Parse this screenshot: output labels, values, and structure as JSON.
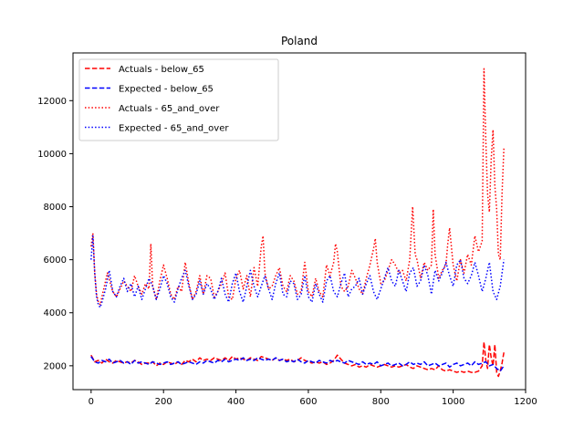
{
  "chart_data": {
    "type": "line",
    "title": "Poland",
    "xlabel": "",
    "ylabel": "",
    "xlim": [
      -50,
      1200
    ],
    "ylim": [
      1100,
      13800
    ],
    "xticks": [
      0,
      200,
      400,
      600,
      800,
      1000,
      1200
    ],
    "yticks": [
      2000,
      4000,
      6000,
      8000,
      10000,
      12000
    ],
    "grid": false,
    "legend_position": "top-left",
    "series": [
      {
        "name": "Actuals - below_65",
        "color": "#ff0000",
        "dash": "dashed",
        "x": [
          0,
          10,
          20,
          30,
          40,
          50,
          60,
          70,
          80,
          90,
          100,
          110,
          120,
          130,
          140,
          150,
          160,
          170,
          180,
          190,
          200,
          210,
          220,
          230,
          240,
          250,
          260,
          270,
          280,
          290,
          300,
          310,
          320,
          330,
          340,
          350,
          360,
          370,
          380,
          390,
          400,
          410,
          420,
          430,
          440,
          450,
          460,
          470,
          480,
          490,
          500,
          510,
          520,
          530,
          540,
          550,
          560,
          570,
          580,
          590,
          600,
          610,
          620,
          630,
          640,
          650,
          660,
          670,
          680,
          690,
          700,
          710,
          720,
          730,
          740,
          750,
          760,
          770,
          780,
          790,
          800,
          810,
          820,
          830,
          840,
          850,
          860,
          870,
          880,
          890,
          900,
          910,
          920,
          930,
          940,
          950,
          960,
          970,
          980,
          990,
          1000,
          1010,
          1020,
          1030,
          1040,
          1050,
          1060,
          1070,
          1080,
          1085,
          1090,
          1095,
          1100,
          1105,
          1110,
          1115,
          1120,
          1125,
          1130,
          1135,
          1140
        ],
        "y": [
          2400,
          2150,
          2200,
          2100,
          2250,
          2150,
          2100,
          2200,
          2150,
          2100,
          2150,
          2100,
          2200,
          2150,
          2050,
          2100,
          2100,
          2150,
          2000,
          2100,
          2050,
          2150,
          2100,
          2050,
          2150,
          2050,
          2200,
          2150,
          2250,
          2150,
          2300,
          2200,
          2250,
          2200,
          2300,
          2250,
          2200,
          2300,
          2200,
          2350,
          2250,
          2300,
          2250,
          2200,
          2300,
          2250,
          2200,
          2350,
          2300,
          2250,
          2200,
          2300,
          2200,
          2250,
          2200,
          2250,
          2150,
          2200,
          2300,
          2200,
          2150,
          2100,
          2150,
          2100,
          2150,
          2050,
          2100,
          2200,
          2400,
          2250,
          2100,
          2050,
          2000,
          2050,
          1950,
          2000,
          1950,
          2050,
          2000,
          1950,
          2000,
          2050,
          2000,
          1950,
          2000,
          1950,
          2000,
          2050,
          1950,
          1900,
          2000,
          1950,
          1900,
          1850,
          1900,
          1850,
          2000,
          1850,
          1800,
          1850,
          1800,
          1750,
          1800,
          1750,
          1800,
          1750,
          1750,
          1800,
          2000,
          2900,
          2200,
          1900,
          2800,
          2300,
          2000,
          2800,
          1750,
          1600,
          1800,
          2100,
          2500
        ]
      },
      {
        "name": "Expected - below_65",
        "color": "#0000ff",
        "dash": "dashed",
        "x": [
          0,
          10,
          20,
          30,
          40,
          50,
          60,
          70,
          80,
          90,
          100,
          110,
          120,
          130,
          140,
          150,
          160,
          170,
          180,
          190,
          200,
          210,
          220,
          230,
          240,
          250,
          260,
          270,
          280,
          290,
          300,
          310,
          320,
          330,
          340,
          350,
          360,
          370,
          380,
          390,
          400,
          410,
          420,
          430,
          440,
          450,
          460,
          470,
          480,
          490,
          500,
          510,
          520,
          530,
          540,
          550,
          560,
          570,
          580,
          590,
          600,
          610,
          620,
          630,
          640,
          650,
          660,
          670,
          680,
          690,
          700,
          710,
          720,
          730,
          740,
          750,
          760,
          770,
          780,
          790,
          800,
          810,
          820,
          830,
          840,
          850,
          860,
          870,
          880,
          890,
          900,
          910,
          920,
          930,
          940,
          950,
          960,
          970,
          980,
          990,
          1000,
          1010,
          1020,
          1030,
          1040,
          1050,
          1060,
          1070,
          1080,
          1090,
          1100,
          1110,
          1120,
          1130,
          1140
        ],
        "y": [
          2350,
          2150,
          2100,
          2200,
          2150,
          2250,
          2100,
          2150,
          2200,
          2100,
          2150,
          2050,
          2200,
          2100,
          2150,
          2100,
          2050,
          2150,
          2100,
          2050,
          2100,
          2150,
          2050,
          2100,
          2150,
          2050,
          2100,
          2150,
          2100,
          2050,
          2150,
          2100,
          2200,
          2150,
          2100,
          2200,
          2150,
          2250,
          2150,
          2200,
          2250,
          2200,
          2300,
          2200,
          2250,
          2200,
          2300,
          2250,
          2200,
          2250,
          2200,
          2300,
          2200,
          2250,
          2150,
          2200,
          2150,
          2250,
          2150,
          2100,
          2200,
          2150,
          2100,
          2200,
          2150,
          2100,
          2200,
          2150,
          2200,
          2150,
          2100,
          2200,
          2150,
          2100,
          2050,
          2150,
          2050,
          2100,
          2050,
          2150,
          2000,
          2050,
          2100,
          2000,
          2050,
          2100,
          2000,
          2050,
          2150,
          2050,
          2100,
          2050,
          2150,
          2000,
          2050,
          2100,
          2000,
          2050,
          2100,
          1950,
          2050,
          2100,
          2000,
          2050,
          2100,
          2000,
          2150,
          2050,
          2100,
          2150,
          2000,
          2050,
          1900,
          1800,
          2000
        ]
      },
      {
        "name": "Actuals - 65_and_over",
        "color": "#ff0000",
        "dash": "dotted",
        "x": [
          0,
          5,
          10,
          15,
          20,
          25,
          30,
          35,
          40,
          45,
          50,
          55,
          60,
          70,
          80,
          90,
          100,
          110,
          120,
          130,
          140,
          150,
          160,
          165,
          170,
          180,
          190,
          200,
          210,
          220,
          230,
          240,
          250,
          260,
          270,
          280,
          290,
          300,
          310,
          320,
          330,
          340,
          350,
          360,
          370,
          380,
          390,
          400,
          410,
          420,
          430,
          440,
          450,
          460,
          470,
          475,
          480,
          490,
          500,
          510,
          520,
          530,
          540,
          550,
          560,
          570,
          580,
          590,
          600,
          610,
          620,
          630,
          640,
          650,
          660,
          670,
          675,
          680,
          690,
          700,
          710,
          720,
          730,
          740,
          750,
          760,
          770,
          780,
          785,
          790,
          800,
          810,
          820,
          830,
          840,
          850,
          860,
          870,
          880,
          888,
          895,
          900,
          910,
          920,
          930,
          940,
          945,
          950,
          960,
          970,
          980,
          985,
          990,
          1000,
          1010,
          1020,
          1030,
          1040,
          1050,
          1060,
          1070,
          1080,
          1085,
          1090,
          1095,
          1100,
          1105,
          1110,
          1115,
          1120,
          1125,
          1130,
          1135,
          1140
        ],
        "y": [
          6500,
          7000,
          5500,
          4700,
          4400,
          4300,
          4600,
          4900,
          5200,
          5500,
          5300,
          5000,
          4800,
          4600,
          4900,
          5200,
          5000,
          4800,
          5400,
          5000,
          4700,
          5100,
          4900,
          6600,
          5000,
          4500,
          5200,
          5800,
          5300,
          4700,
          4500,
          5000,
          4800,
          5900,
          5100,
          4500,
          4800,
          5400,
          4700,
          5400,
          5300,
          4600,
          4800,
          5100,
          5500,
          4600,
          4500,
          5300,
          5600,
          4900,
          5400,
          4600,
          5700,
          5000,
          6500,
          6900,
          5500,
          4900,
          5000,
          5400,
          5700,
          5000,
          4800,
          5400,
          5200,
          4700,
          4800,
          5900,
          4800,
          4600,
          5300,
          4800,
          4600,
          5800,
          5400,
          5900,
          6600,
          6300,
          5000,
          4800,
          5000,
          5600,
          5300,
          4900,
          4700,
          5300,
          5800,
          6400,
          6800,
          5900,
          5100,
          5200,
          5600,
          6000,
          5800,
          5500,
          5600,
          5200,
          6000,
          8000,
          6200,
          6000,
          5300,
          5900,
          5600,
          5800,
          7900,
          6200,
          5300,
          5600,
          5800,
          6600,
          7200,
          5800,
          5200,
          6000,
          5500,
          6200,
          5800,
          6900,
          6300,
          6700,
          13200,
          10500,
          8500,
          7800,
          9800,
          10900,
          8800,
          7900,
          6200,
          6000,
          8500,
          10200
        ]
      },
      {
        "name": "Expected - 65_and_over",
        "color": "#0000ff",
        "dash": "dotted",
        "x": [
          0,
          5,
          10,
          15,
          20,
          25,
          30,
          40,
          50,
          55,
          60,
          70,
          80,
          90,
          100,
          110,
          120,
          130,
          140,
          150,
          160,
          170,
          180,
          190,
          200,
          210,
          220,
          230,
          240,
          250,
          260,
          270,
          280,
          290,
          300,
          310,
          320,
          330,
          340,
          350,
          360,
          370,
          380,
          390,
          400,
          410,
          420,
          430,
          440,
          450,
          460,
          470,
          480,
          490,
          500,
          510,
          520,
          530,
          540,
          550,
          560,
          570,
          580,
          590,
          600,
          610,
          620,
          630,
          640,
          650,
          660,
          670,
          680,
          690,
          700,
          710,
          720,
          730,
          740,
          750,
          760,
          770,
          780,
          790,
          800,
          810,
          820,
          830,
          840,
          850,
          860,
          870,
          880,
          890,
          900,
          910,
          920,
          930,
          940,
          950,
          960,
          970,
          980,
          990,
          1000,
          1010,
          1020,
          1030,
          1040,
          1050,
          1060,
          1070,
          1080,
          1090,
          1100,
          1110,
          1120,
          1130,
          1140
        ],
        "y": [
          6000,
          6900,
          5500,
          4600,
          4300,
          4200,
          4400,
          4900,
          5600,
          5200,
          4800,
          4600,
          5000,
          5300,
          4800,
          5100,
          4600,
          5000,
          4500,
          4900,
          5300,
          5000,
          4500,
          4900,
          5400,
          5100,
          4600,
          4400,
          4900,
          5300,
          5600,
          5000,
          4500,
          4700,
          5200,
          4700,
          5100,
          4900,
          4500,
          4800,
          5300,
          4700,
          4400,
          5100,
          5500,
          4800,
          4400,
          5000,
          5600,
          5000,
          4600,
          5000,
          5400,
          4900,
          4500,
          5100,
          5500,
          4700,
          4600,
          5200,
          5100,
          4500,
          4700,
          5400,
          4600,
          4400,
          5100,
          4700,
          4400,
          5200,
          5400,
          4800,
          4600,
          5100,
          5500,
          4600,
          4900,
          5000,
          5300,
          4700,
          5100,
          5400,
          4800,
          4500,
          4900,
          5300,
          5700,
          5200,
          5000,
          5600,
          5200,
          4800,
          5500,
          5700,
          5000,
          5200,
          5800,
          5400,
          4700,
          5600,
          5200,
          5500,
          5900,
          5400,
          5000,
          5800,
          6000,
          5300,
          5100,
          5400,
          5900,
          5400,
          4800,
          5300,
          5900,
          4800,
          4500,
          5000,
          6000
        ]
      }
    ]
  }
}
